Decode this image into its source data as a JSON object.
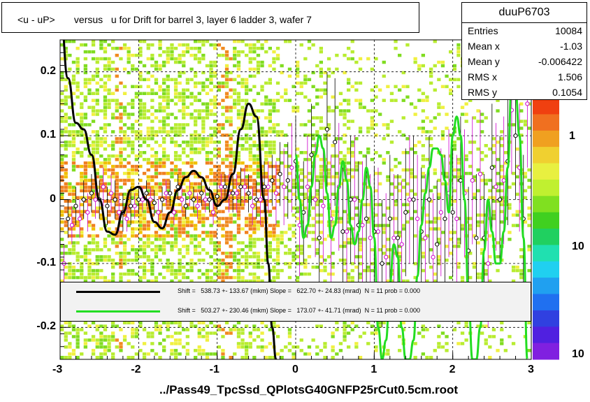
{
  "title": "<u - uP>       versus   u for Drift for barrel 3, layer 6 ladder 3, wafer 7",
  "stats": {
    "name": "duuP6703",
    "rows": [
      {
        "key": "Entries",
        "value": "10084"
      },
      {
        "key": "Mean x",
        "value": "-1.03"
      },
      {
        "key": "Mean y",
        "value": "-0.006422"
      },
      {
        "key": "RMS x",
        "value": "1.506"
      },
      {
        "key": "RMS y",
        "value": "0.1054"
      }
    ]
  },
  "legend": {
    "fit1": "Shift =   538.73 +- 133.67 (mkm) Slope =   622.70 +- 24.83 (mrad)  N = 11 prob = 0.000",
    "fit2": "Shift =   503.27 +- 230.46 (mkm) Slope =   173.07 +- 41.71 (mrad)  N = 11 prob = 0.000"
  },
  "footer": "../Pass49_TpcSsd_QPlotsG40GNFP25rCut0.5cm.root",
  "colors": {
    "fit1": "#000000",
    "fit2": "#22dd22",
    "profile_black": "#000000",
    "profile_magenta": "#cc00cc"
  },
  "chart_data": {
    "type": "heatmap",
    "xlim": [
      -3,
      3
    ],
    "ylim": [
      -0.25,
      0.25
    ],
    "x_ticks": [
      "-3",
      "-2",
      "-1",
      "0",
      "1",
      "2",
      "3"
    ],
    "y_ticks": [
      "-0.2",
      "-0.1",
      "0",
      "0.1",
      "0.2"
    ],
    "z_ticks": [
      "1",
      "10",
      "10"
    ],
    "grid": true,
    "profile_black": {
      "x": [
        -2.9,
        -2.8,
        -2.7,
        -2.6,
        -2.5,
        -2.4,
        -2.3,
        -2.2,
        -2.1,
        -2.0,
        -1.9,
        -1.8,
        -1.7,
        -1.6,
        -1.5,
        -1.4,
        -1.3,
        -1.2,
        -1.1,
        -1.0,
        -0.9,
        -0.8,
        -0.7,
        -0.6,
        -0.5,
        -0.4,
        -0.3,
        -0.2,
        -0.1,
        0.0,
        0.1,
        0.2,
        0.3,
        0.4,
        0.5,
        0.6,
        0.7,
        0.8,
        0.9,
        1.0,
        1.1,
        1.2,
        1.3,
        1.4,
        1.5,
        1.6,
        1.7,
        1.8,
        1.9,
        2.0,
        2.1,
        2.2,
        2.3,
        2.4,
        2.5,
        2.6,
        2.7,
        2.8,
        2.9
      ],
      "y": [
        -0.03,
        -0.01,
        0.0,
        0.01,
        0.0,
        -0.01,
        0.0,
        -0.02,
        -0.01,
        0.0,
        0.01,
        -0.005,
        0.0,
        0.01,
        0.02,
        -0.01,
        0.0,
        0.01,
        0.0,
        0.005,
        0.02,
        0.01,
        0.02,
        0.01,
        0.0,
        0.02,
        0.03,
        0.04,
        0.03,
        0.06,
        -0.02,
        0.07,
        -0.06,
        0.11,
        0.09,
        -0.05,
        0.0,
        -0.04,
        -0.03,
        -0.05,
        -0.1,
        -0.03,
        -0.06,
        -0.02,
        0.0,
        -0.05,
        0.0,
        -0.07,
        -0.03,
        -0.02,
        0.03,
        -0.08,
        -0.06,
        -0.06,
        0.05,
        0.0,
        0.06,
        0.1,
        -0.03
      ],
      "err": [
        0.03,
        0.03,
        0.03,
        0.03,
        0.03,
        0.03,
        0.03,
        0.03,
        0.03,
        0.02,
        0.02,
        0.02,
        0.02,
        0.02,
        0.02,
        0.02,
        0.02,
        0.02,
        0.02,
        0.02,
        0.02,
        0.03,
        0.03,
        0.03,
        0.03,
        0.04,
        0.04,
        0.05,
        0.06,
        0.07,
        0.08,
        0.08,
        0.09,
        0.09,
        0.1,
        0.1,
        0.1,
        0.1,
        0.1,
        0.1,
        0.1,
        0.1,
        0.1,
        0.1,
        0.1,
        0.1,
        0.1,
        0.1,
        0.1,
        0.1,
        0.1,
        0.1,
        0.1,
        0.1,
        0.1,
        0.1,
        0.1,
        0.1,
        0.1
      ]
    },
    "profile_magenta": {
      "x": [
        -2.95,
        -2.85,
        -2.75,
        -2.65,
        -2.55,
        -2.45,
        -2.35,
        -2.25,
        -2.15,
        -2.05,
        -1.95,
        -1.85,
        -1.75,
        -1.65,
        -1.55,
        -1.45,
        -1.35,
        -1.25,
        -1.15,
        -1.05,
        -0.95,
        -0.85,
        -0.75,
        -0.65,
        -0.55,
        -0.45,
        -0.35,
        -0.25,
        -0.15,
        -0.05,
        0.05,
        0.15,
        0.25,
        0.35,
        0.45,
        0.55,
        0.65,
        0.75,
        0.85,
        0.95,
        1.05,
        1.15,
        1.25,
        1.35,
        1.45,
        1.55,
        1.65,
        1.75,
        1.85,
        1.95,
        2.05,
        2.15,
        2.25,
        2.35,
        2.45,
        2.55,
        2.65,
        2.75,
        2.85,
        2.95
      ],
      "y": [
        -0.1,
        -0.04,
        -0.03,
        -0.02,
        0.0,
        0.02,
        0.01,
        -0.02,
        -0.03,
        -0.01,
        0.0,
        0.0,
        -0.02,
        0.01,
        -0.02,
        0.0,
        0.01,
        -0.01,
        0.0,
        -0.02,
        0.02,
        0.01,
        0.01,
        0.02,
        -0.01,
        0.0,
        0.02,
        0.01,
        0.02,
        0.05,
        -0.04,
        0.02,
        0.0,
        -0.01,
        -0.03,
        0.02,
        -0.05,
        0.0,
        -0.04,
        -0.06,
        -0.05,
        -0.09,
        -0.06,
        -0.07,
        0.0,
        -0.03,
        -0.06,
        -0.09,
        -0.02,
        0.01,
        -0.03,
        0.01,
        0.03,
        0.04,
        -0.1,
        0.02,
        0.03,
        0.14,
        0.05,
        0.15
      ],
      "err": [
        0.03,
        0.03,
        0.03,
        0.03,
        0.03,
        0.03,
        0.03,
        0.03,
        0.02,
        0.02,
        0.02,
        0.02,
        0.02,
        0.02,
        0.02,
        0.02,
        0.02,
        0.02,
        0.02,
        0.02,
        0.02,
        0.03,
        0.03,
        0.03,
        0.03,
        0.04,
        0.04,
        0.05,
        0.06,
        0.07,
        0.08,
        0.08,
        0.09,
        0.09,
        0.1,
        0.1,
        0.1,
        0.1,
        0.1,
        0.1,
        0.1,
        0.1,
        0.1,
        0.1,
        0.1,
        0.1,
        0.1,
        0.1,
        0.1,
        0.1,
        0.1,
        0.1,
        0.1,
        0.1,
        0.1,
        0.1,
        0.1,
        0.1,
        0.1,
        0.1
      ]
    },
    "fit_black": {
      "x": [
        -3.0,
        -2.9,
        -2.8,
        -2.7,
        -2.6,
        -2.5,
        -2.4,
        -2.3,
        -2.2,
        -2.1,
        -2.0,
        -1.9,
        -1.8,
        -1.7,
        -1.6,
        -1.5,
        -1.4,
        -1.3,
        -1.2,
        -1.1,
        -1.0,
        -0.9,
        -0.8,
        -0.7,
        -0.6,
        -0.5,
        -0.4,
        -0.35,
        -0.3,
        -0.25,
        -0.2
      ],
      "y": [
        0.3,
        0.19,
        0.12,
        0.11,
        0.07,
        0.0,
        -0.05,
        -0.055,
        -0.02,
        0.015,
        0.02,
        0.0,
        -0.035,
        -0.045,
        -0.02,
        0.015,
        0.035,
        0.045,
        0.035,
        0.015,
        -0.01,
        0.0,
        0.04,
        0.11,
        0.15,
        0.13,
        0.0,
        -0.1,
        -0.2,
        -0.25,
        -0.3
      ]
    },
    "fit_green": {
      "x": [
        0.0,
        0.05,
        0.1,
        0.15,
        0.2,
        0.25,
        0.3,
        0.35,
        0.4,
        0.45,
        0.5,
        0.55,
        0.6,
        0.65,
        0.7,
        0.75,
        0.8,
        0.85,
        0.9,
        0.95,
        1.0,
        1.05,
        1.1,
        1.15,
        1.2,
        1.25,
        1.3,
        1.35,
        1.4,
        1.45,
        1.5,
        1.55,
        1.6,
        1.65,
        1.7,
        1.75,
        1.8,
        1.85,
        1.9,
        1.95,
        2.0,
        2.05,
        2.1,
        2.15,
        2.2,
        2.25,
        2.3,
        2.35,
        2.4,
        2.45,
        2.5,
        2.55,
        2.6,
        2.65,
        2.7,
        2.75,
        2.8,
        2.85,
        2.9,
        2.95
      ],
      "y": [
        0.07,
        0.0,
        -0.06,
        -0.04,
        0.02,
        0.07,
        0.1,
        0.08,
        0.01,
        -0.06,
        -0.04,
        0.02,
        0.06,
        0.03,
        -0.04,
        -0.07,
        -0.05,
        0.0,
        0.05,
        0.02,
        -0.06,
        -0.2,
        -0.25,
        -0.22,
        -0.13,
        -0.07,
        -0.09,
        -0.2,
        -0.25,
        -0.25,
        -0.22,
        -0.12,
        -0.04,
        0.01,
        0.05,
        0.08,
        0.08,
        0.07,
        0.03,
        -0.02,
        0.1,
        0.13,
        0.1,
        0.0,
        -0.15,
        -0.25,
        -0.25,
        -0.2,
        -0.08,
        0.0,
        -0.05,
        -0.1,
        -0.1,
        -0.05,
        0.05,
        0.18,
        0.17,
        0.1,
        -0.06,
        -0.25
      ]
    }
  }
}
